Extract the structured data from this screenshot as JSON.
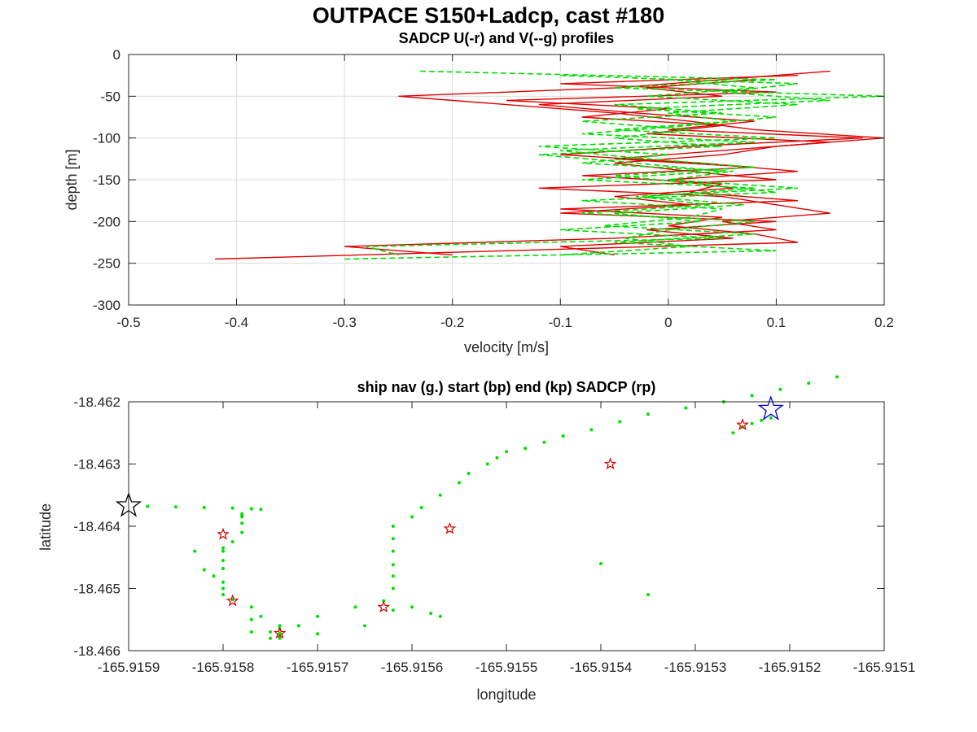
{
  "figure": {
    "title": "OUTPACE S150+Ladcp, cast #180"
  },
  "colors": {
    "u_line": "#e00000",
    "v_line": "#00dd00",
    "nav_dot": "#00e000",
    "start_star": "#0000cc",
    "end_star": "#000000",
    "sadcp_star": "#d00000"
  },
  "chart_data": [
    {
      "type": "line",
      "title": "SADCP U(-r) and V(--g) profiles",
      "xlabel": "velocity [m/s]",
      "ylabel": "depth [m]",
      "xlim": [
        -0.5,
        0.2
      ],
      "ylim": [
        -300,
        0
      ],
      "xticks": [
        -0.5,
        -0.4,
        -0.3,
        -0.2,
        -0.1,
        0,
        0.1,
        0.2
      ],
      "xtick_labels": [
        "-0.5",
        "-0.4",
        "-0.3",
        "-0.2",
        "-0.1",
        "0",
        "0.1",
        "0.2"
      ],
      "yticks": [
        0,
        -50,
        -100,
        -150,
        -200,
        -250,
        -300
      ],
      "ytick_labels": [
        "0",
        "-50",
        "-100",
        "-150",
        "-200",
        "-250",
        "-300"
      ],
      "grid": true,
      "series": [
        {
          "style": "solid-red",
          "depth": [
            -20,
            -30,
            -40,
            -50,
            -60,
            -70,
            -80,
            -90,
            -100,
            -110,
            -120,
            -130,
            -140,
            -150,
            -160,
            -170,
            -180,
            -190,
            -200,
            -210,
            -220,
            -230,
            -240
          ],
          "values": [
            0.15,
            0.05,
            -0.05,
            -0.25,
            -0.15,
            -0.05,
            0.02,
            0.08,
            0.2,
            0.1,
            0.05,
            -0.05,
            0.02,
            0.1,
            -0.12,
            0.05,
            0.1,
            0.15,
            0.05,
            0.1,
            -0.05,
            -0.3,
            -0.2
          ]
        },
        {
          "style": "solid-red",
          "depth": [
            -25,
            -35,
            -45,
            -55,
            -65,
            -75,
            -85,
            -95,
            -105,
            -115,
            -125,
            -135,
            -145,
            -155,
            -165,
            -175,
            -185,
            -195,
            -205,
            -215,
            -225,
            -235,
            -245
          ],
          "values": [
            0.12,
            -0.1,
            0.1,
            -0.15,
            0.0,
            -0.08,
            0.05,
            -0.02,
            0.15,
            0.05,
            -0.05,
            0.08,
            -0.08,
            0.05,
            0.02,
            0.12,
            -0.1,
            0.05,
            0.0,
            0.08,
            0.12,
            -0.15,
            -0.42
          ]
        },
        {
          "style": "solid-red",
          "depth": [
            -30,
            -40,
            -50,
            -60,
            -70,
            -80,
            -90,
            -100,
            -110,
            -120,
            -130,
            -140,
            -150,
            -160,
            -170,
            -180,
            -190,
            -200,
            -210,
            -220,
            -230,
            -240
          ],
          "values": [
            0.08,
            -0.02,
            0.05,
            -0.12,
            -0.03,
            0.08,
            0.0,
            0.18,
            0.02,
            -0.1,
            0.03,
            0.12,
            0.0,
            0.06,
            -0.05,
            0.02,
            -0.1,
            0.1,
            -0.02,
            0.06,
            -0.1,
            -0.05
          ]
        },
        {
          "style": "dashed-green",
          "depth": [
            -20,
            -30,
            -40,
            -50,
            -60,
            -70,
            -80,
            -90,
            -100,
            -110,
            -120,
            -130,
            -140,
            -150,
            -160,
            -170,
            -180,
            -190,
            -200,
            -210,
            -220,
            -230,
            -240
          ],
          "values": [
            -0.23,
            0.1,
            -0.05,
            0.2,
            -0.05,
            0.05,
            -0.08,
            0.02,
            -0.05,
            0.05,
            -0.12,
            -0.03,
            0.05,
            -0.08,
            0.08,
            -0.02,
            0.07,
            -0.05,
            0.03,
            -0.1,
            0.05,
            -0.28,
            -0.25
          ]
        },
        {
          "style": "dashed-green",
          "depth": [
            -25,
            -35,
            -45,
            -55,
            -65,
            -75,
            -85,
            -95,
            -105,
            -115,
            -125,
            -135,
            -145,
            -155,
            -165,
            -175,
            -185,
            -195,
            -205,
            -215,
            -225,
            -235,
            -245
          ],
          "values": [
            -0.1,
            0.12,
            0.05,
            0.15,
            -0.03,
            0.1,
            0.02,
            -0.08,
            0.08,
            -0.1,
            -0.02,
            0.08,
            -0.05,
            0.03,
            0.1,
            -0.08,
            0.05,
            0.02,
            -0.06,
            0.08,
            -0.05,
            0.1,
            -0.3
          ]
        },
        {
          "style": "dashed-green",
          "depth": [
            -30,
            -40,
            -50,
            -60,
            -70,
            -80,
            -90,
            -100,
            -110,
            -120,
            -130,
            -140,
            -150,
            -160,
            -170,
            -180,
            -190,
            -200,
            -210,
            -220,
            -230,
            -240
          ],
          "values": [
            0.0,
            0.08,
            -0.02,
            0.12,
            0.0,
            0.06,
            -0.05,
            0.1,
            -0.12,
            0.0,
            -0.08,
            0.06,
            0.0,
            0.12,
            -0.03,
            0.04,
            -0.08,
            0.08,
            0.0,
            -0.04,
            0.02,
            -0.1
          ]
        }
      ]
    },
    {
      "type": "scatter",
      "title": "ship nav (g.) start (bp) end (kp) SADCP (rp)",
      "xlabel": "longitude",
      "ylabel": "latitude",
      "xlim": [
        -165.9159,
        -165.9151
      ],
      "ylim": [
        -18.466,
        -18.462
      ],
      "xticks": [
        -165.9159,
        -165.9158,
        -165.9157,
        -165.9156,
        -165.9155,
        -165.9154,
        -165.9153,
        -165.9152,
        -165.9151
      ],
      "xtick_labels": [
        "-165.9159",
        "-165.9158",
        "-165.9157",
        "-165.9156",
        "-165.9155",
        "-165.9154",
        "-165.9153",
        "-165.9152",
        "-165.9151"
      ],
      "yticks": [
        -18.462,
        -18.463,
        -18.464,
        -18.465,
        -18.466
      ],
      "ytick_labels": [
        "-18.462",
        "-18.463",
        "-18.464",
        "-18.465",
        "-18.466"
      ],
      "grid": false,
      "nav": {
        "lon": [
          -165.91588,
          -165.91585,
          -165.91582,
          -165.91579,
          -165.91577,
          -165.91576,
          -165.91578,
          -165.91578,
          -165.91578,
          -165.91579,
          -165.9158,
          -165.9158,
          -165.9158,
          -165.9158,
          -165.91581,
          -165.9158,
          -165.9158,
          -165.91579,
          -165.91577,
          -165.91576,
          -165.91574,
          -165.91574,
          -165.91574,
          -165.91574,
          -165.91575,
          -165.91574,
          -165.91572,
          -165.9157,
          -165.91566,
          -165.91563,
          -165.91562,
          -165.91562,
          -165.91562,
          -165.91562,
          -165.91562,
          -165.91562,
          -165.9156,
          -165.91559,
          -165.91557,
          -165.91555,
          -165.91554,
          -165.91552,
          -165.91551,
          -165.9155,
          -165.91548,
          -165.91546,
          -165.91544,
          -165.91541,
          -165.91538,
          -165.91535,
          -165.91531,
          -165.91527,
          -165.91524,
          -165.91521,
          -165.91518,
          -165.91515,
          -165.91535,
          -165.9154,
          -165.91525,
          -165.91524,
          -165.91523,
          -165.91522,
          -165.91526
        ],
        "lat": [
          -18.46368,
          -18.46369,
          -18.4637,
          -18.46371,
          -18.46372,
          -18.46373,
          -18.46382,
          -18.46395,
          -18.4641,
          -18.46425,
          -18.46435,
          -18.4644,
          -18.46455,
          -18.46468,
          -18.4648,
          -18.4649,
          -18.465,
          -18.46518,
          -18.4653,
          -18.46545,
          -18.4656,
          -18.46572,
          -18.4658,
          -18.46575,
          -18.4657,
          -18.46565,
          -18.4656,
          -18.46545,
          -18.4653,
          -18.4652,
          -18.465,
          -18.4648,
          -18.46462,
          -18.4644,
          -18.4642,
          -18.464,
          -18.46385,
          -18.4637,
          -18.4635,
          -18.4633,
          -18.46315,
          -18.463,
          -18.4629,
          -18.4628,
          -18.46275,
          -18.46265,
          -18.46255,
          -18.46245,
          -18.46232,
          -18.4622,
          -18.4621,
          -18.462,
          -18.4619,
          -18.4618,
          -18.4617,
          -18.4616,
          -18.4651,
          -18.4646,
          -18.4624,
          -18.46235,
          -18.4623,
          -18.46226,
          -18.4625
        ],
        "lon_extra": [
          -165.91557,
          -165.91558,
          -165.9156,
          -165.91562,
          -165.91565,
          -165.9157,
          -165.91575,
          -165.91577,
          -165.91577,
          -165.9158,
          -165.91582,
          -165.91583,
          -165.91578,
          -165.91578,
          -165.91578
        ],
        "lat_extra": [
          -18.46545,
          -18.4654,
          -18.4653,
          -18.46535,
          -18.4656,
          -18.46573,
          -18.4658,
          -18.4657,
          -18.4655,
          -18.4651,
          -18.4647,
          -18.4644,
          -18.46395,
          -18.46385,
          -18.4638
        ]
      },
      "start": {
        "lon": -165.91522,
        "lat": -18.46212
      },
      "end": {
        "lon": -165.9159,
        "lat": -18.46367
      },
      "sadcp_points": {
        "lon": [
          -165.91525,
          -165.91539,
          -165.91556,
          -165.91563,
          -165.91574,
          -165.91579,
          -165.9158
        ],
        "lat": [
          -18.46237,
          -18.463,
          -18.46404,
          -18.4653,
          -18.46572,
          -18.4652,
          -18.46413
        ]
      }
    }
  ]
}
